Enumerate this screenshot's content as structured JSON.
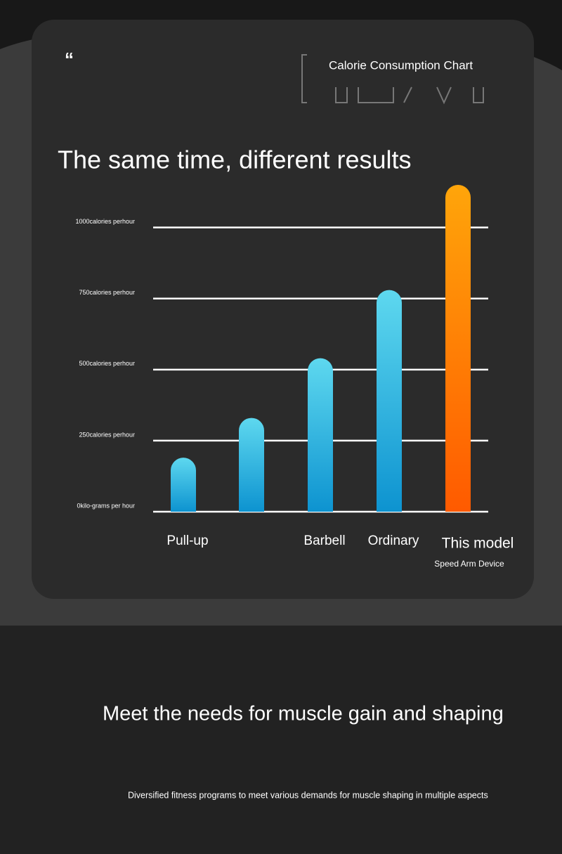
{
  "header": {
    "label": "Calorie Consumption Chart"
  },
  "chart_data": {
    "type": "bar",
    "title": "The same time, different results",
    "categories": [
      "Pull-up",
      null,
      "Barbell",
      "Ordinary",
      "This model"
    ],
    "values": [
      190,
      330,
      540,
      780,
      1150
    ],
    "colors": [
      [
        "#5ed8ef",
        "#0d93d0"
      ],
      [
        "#5ed8ef",
        "#0d93d0"
      ],
      [
        "#5ed8ef",
        "#0d93d0"
      ],
      [
        "#5ed8ef",
        "#0d93d0"
      ],
      [
        "#ffa50a",
        "#ff5a00"
      ]
    ],
    "annotation": "Speed Arm Device",
    "ylim": [
      0,
      1150
    ],
    "yticks": [
      {
        "value": 0,
        "label": "0kilo-grams per hour"
      },
      {
        "value": 250,
        "label": "250calories perhour"
      },
      {
        "value": 500,
        "label": "500calories perhour"
      },
      {
        "value": 750,
        "label": "750calories perhour"
      },
      {
        "value": 1000,
        "label": "1000calories perhour"
      }
    ],
    "grid": true
  },
  "section": {
    "heading": "Meet the needs for muscle gain and shaping",
    "text": "Diversified fitness programs to meet various demands for muscle shaping in multiple aspects"
  }
}
